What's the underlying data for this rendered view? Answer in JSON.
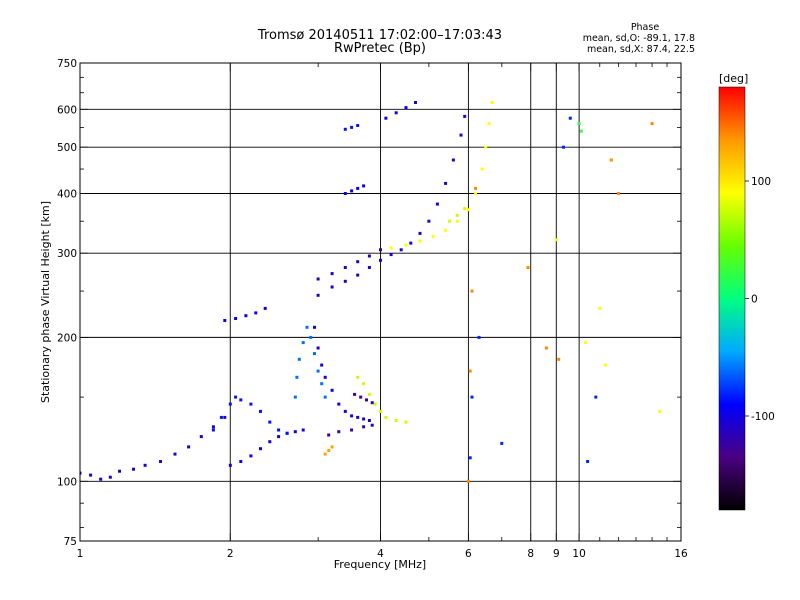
{
  "chart_data": {
    "type": "scatter",
    "title": "Tromsø 20140511 17:02:00–17:03:43",
    "subtitle": "RwPretec (Bp)",
    "xlabel": "Frequency [MHz]",
    "ylabel": "Stationary phase Virtual Height [km]",
    "x_scale": "log",
    "y_scale": "log",
    "xlim": [
      1,
      16
    ],
    "ylim": [
      75,
      750
    ],
    "x_ticks": [
      1,
      2,
      4,
      6,
      8,
      9,
      10,
      16
    ],
    "x_tick_labels": [
      "1",
      "2",
      "4",
      "6",
      "8",
      "9",
      "10",
      "16"
    ],
    "x_grid": [
      2,
      4,
      6,
      8,
      9,
      10
    ],
    "y_ticks": [
      75,
      100,
      200,
      300,
      400,
      500,
      600,
      750
    ],
    "y_tick_labels": [
      "75",
      "100",
      "200",
      "300",
      "400",
      "500",
      "600",
      "750"
    ],
    "y_grid": [
      100,
      200,
      300,
      400,
      500,
      600
    ],
    "grid": true,
    "phase_stats": {
      "heading": "Phase",
      "o_mode": "mean, sd,O: -89.1, 17.8",
      "x_mode": "mean, sd,X:  87.4, 22.5"
    },
    "colorbar": {
      "label": "[deg]",
      "range": [
        -180,
        180
      ],
      "ticks": [
        100,
        0,
        -100
      ],
      "tick_labels": [
        "100",
        "0",
        "-100"
      ]
    },
    "series": [
      {
        "phase": -110,
        "points": [
          [
            1.0,
            104
          ],
          [
            1.05,
            103
          ],
          [
            1.1,
            101
          ],
          [
            1.15,
            102
          ],
          [
            1.2,
            105
          ],
          [
            1.28,
            106
          ],
          [
            1.35,
            108
          ],
          [
            1.45,
            110
          ],
          [
            1.55,
            114
          ],
          [
            1.65,
            118
          ],
          [
            1.75,
            124
          ],
          [
            1.85,
            130
          ],
          [
            1.95,
            136
          ]
        ]
      },
      {
        "phase": -100,
        "points": [
          [
            2.0,
            108
          ],
          [
            2.1,
            110
          ],
          [
            2.2,
            113
          ],
          [
            2.3,
            117
          ],
          [
            2.4,
            121
          ],
          [
            2.5,
            124
          ],
          [
            2.6,
            126
          ],
          [
            2.7,
            127
          ],
          [
            2.8,
            128
          ]
        ]
      },
      {
        "phase": -85,
        "points": [
          [
            1.85,
            128
          ],
          [
            1.92,
            136
          ],
          [
            2.0,
            145
          ],
          [
            2.05,
            150
          ],
          [
            2.1,
            148
          ],
          [
            2.2,
            145
          ],
          [
            2.3,
            140
          ],
          [
            2.4,
            133
          ],
          [
            2.5,
            128
          ],
          [
            2.6,
            126
          ]
        ]
      },
      {
        "phase": -60,
        "points": [
          [
            2.7,
            150
          ],
          [
            2.72,
            165
          ],
          [
            2.75,
            180
          ],
          [
            2.8,
            195
          ],
          [
            2.85,
            210
          ],
          [
            2.9,
            200
          ],
          [
            2.95,
            185
          ],
          [
            3.0,
            170
          ],
          [
            3.05,
            160
          ],
          [
            3.1,
            150
          ]
        ]
      },
      {
        "phase": -105,
        "points": [
          [
            2.95,
            210
          ],
          [
            3.0,
            190
          ],
          [
            3.05,
            175
          ],
          [
            3.1,
            165
          ],
          [
            3.2,
            155
          ],
          [
            3.3,
            145
          ],
          [
            3.4,
            140
          ],
          [
            3.5,
            137
          ],
          [
            3.6,
            136
          ],
          [
            3.7,
            135
          ],
          [
            3.8,
            134
          ]
        ]
      },
      {
        "phase": -120,
        "points": [
          [
            3.15,
            125
          ],
          [
            3.3,
            127
          ],
          [
            3.5,
            128
          ],
          [
            3.7,
            130
          ],
          [
            3.85,
            131
          ]
        ]
      },
      {
        "phase": 130,
        "points": [
          [
            3.1,
            114
          ],
          [
            3.15,
            116
          ],
          [
            3.2,
            118
          ]
        ]
      },
      {
        "phase": 75,
        "points": [
          [
            3.6,
            165
          ],
          [
            3.7,
            160
          ],
          [
            3.8,
            152
          ],
          [
            3.9,
            145
          ],
          [
            4.0,
            140
          ],
          [
            4.1,
            136
          ],
          [
            4.3,
            134
          ],
          [
            4.5,
            133
          ]
        ]
      },
      {
        "phase": -130,
        "points": [
          [
            3.55,
            152
          ],
          [
            3.65,
            150
          ],
          [
            3.75,
            148
          ],
          [
            3.85,
            146
          ]
        ]
      },
      {
        "phase": -95,
        "points": [
          [
            1.95,
            217
          ],
          [
            2.05,
            219
          ],
          [
            2.15,
            222
          ],
          [
            2.25,
            225
          ],
          [
            2.35,
            230
          ]
        ]
      },
      {
        "phase": -110,
        "points": [
          [
            3.0,
            245
          ],
          [
            3.2,
            255
          ],
          [
            3.4,
            262
          ],
          [
            3.6,
            270
          ],
          [
            3.8,
            280
          ],
          [
            4.0,
            290
          ],
          [
            4.2,
            298
          ],
          [
            4.4,
            305
          ],
          [
            4.6,
            315
          ],
          [
            4.8,
            330
          ],
          [
            5.0,
            350
          ],
          [
            5.2,
            380
          ],
          [
            5.4,
            420
          ],
          [
            5.6,
            470
          ],
          [
            5.8,
            530
          ],
          [
            5.9,
            580
          ]
        ]
      },
      {
        "phase": -115,
        "points": [
          [
            3.0,
            265
          ],
          [
            3.2,
            272
          ],
          [
            3.4,
            280
          ],
          [
            3.6,
            288
          ],
          [
            3.8,
            296
          ],
          [
            4.0,
            305
          ]
        ]
      },
      {
        "phase": -90,
        "points": [
          [
            3.4,
            400
          ],
          [
            3.5,
            405
          ],
          [
            3.6,
            410
          ],
          [
            3.7,
            415
          ]
        ]
      },
      {
        "phase": -85,
        "points": [
          [
            3.4,
            545
          ],
          [
            3.5,
            550
          ],
          [
            3.6,
            555
          ]
        ]
      },
      {
        "phase": -100,
        "points": [
          [
            4.1,
            575
          ],
          [
            4.3,
            590
          ],
          [
            4.5,
            605
          ],
          [
            4.7,
            620
          ]
        ]
      },
      {
        "phase": 90,
        "points": [
          [
            4.2,
            308
          ],
          [
            4.5,
            312
          ],
          [
            4.8,
            318
          ],
          [
            5.1,
            325
          ],
          [
            5.4,
            335
          ],
          [
            5.7,
            350
          ],
          [
            6.0,
            370
          ],
          [
            6.2,
            400
          ],
          [
            6.4,
            450
          ],
          [
            6.5,
            500
          ],
          [
            6.6,
            560
          ],
          [
            6.7,
            620
          ]
        ]
      },
      {
        "phase": 75,
        "points": [
          [
            5.5,
            350
          ],
          [
            5.7,
            360
          ],
          [
            5.9,
            372
          ]
        ]
      },
      {
        "phase": 140,
        "points": [
          [
            6.0,
            100
          ],
          [
            6.05,
            170
          ],
          [
            6.1,
            250
          ],
          [
            6.2,
            410
          ],
          [
            7.9,
            280
          ],
          [
            8.6,
            190
          ],
          [
            9.1,
            180
          ],
          [
            11.6,
            470
          ],
          [
            12.0,
            400
          ],
          [
            14.0,
            560
          ]
        ]
      },
      {
        "phase": -80,
        "points": [
          [
            6.05,
            112
          ],
          [
            6.1,
            150
          ],
          [
            6.3,
            200
          ],
          [
            7.0,
            120
          ],
          [
            9.3,
            500
          ],
          [
            9.6,
            575
          ],
          [
            10.4,
            110
          ],
          [
            10.8,
            150
          ]
        ]
      },
      {
        "phase": 20,
        "points": [
          [
            10.0,
            560
          ],
          [
            10.1,
            540
          ]
        ]
      },
      {
        "phase": 90,
        "points": [
          [
            9.0,
            320
          ],
          [
            10.3,
            195
          ],
          [
            11.0,
            230
          ],
          [
            11.3,
            175
          ],
          [
            14.5,
            140
          ]
        ]
      }
    ]
  }
}
